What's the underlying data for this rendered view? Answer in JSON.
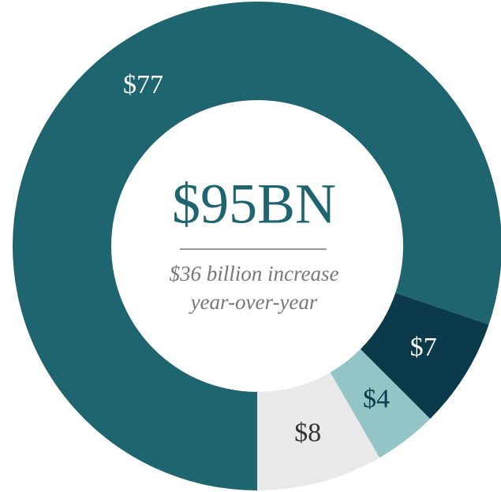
{
  "chart_data": {
    "type": "donut",
    "title": "$95BN",
    "subtitle": [
      "$36 billion increase",
      "year-over-year"
    ],
    "values": [
      77,
      7,
      4,
      8
    ],
    "value_labels": [
      "$77",
      "$7",
      "$4",
      "$8"
    ],
    "colors": [
      "#1f6570",
      "#0b3a4b",
      "#93c4c6",
      "#e9e9e9"
    ],
    "label_colors": [
      "#ffffff",
      "#ffffff",
      "#0b3a4b",
      "#333333"
    ]
  }
}
